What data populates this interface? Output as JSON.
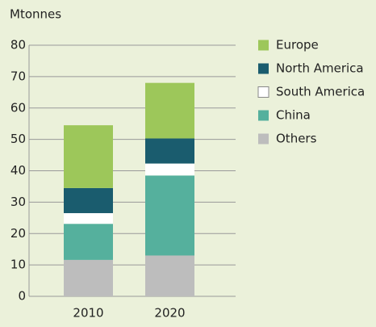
{
  "chart_data": {
    "type": "stacked_bar",
    "title": "Mtonnes",
    "categories": [
      "2010",
      "2020"
    ],
    "series": [
      {
        "name": "Europe",
        "color": "#9dc75a",
        "values": [
          20,
          17.7
        ]
      },
      {
        "name": "North America",
        "color": "#1a5c6e",
        "values": [
          8,
          8
        ]
      },
      {
        "name": "South America",
        "color": "#ffffff",
        "values": [
          3.4,
          3.8
        ]
      },
      {
        "name": "China",
        "color": "#55b09d",
        "values": [
          11.5,
          25.5
        ]
      },
      {
        "name": "Others",
        "color": "#bdbdbd",
        "values": [
          11.6,
          13
        ]
      }
    ],
    "ylim": [
      0,
      80
    ],
    "yticks": [
      0,
      10,
      20,
      30,
      40,
      50,
      60,
      70,
      80
    ],
    "grid": true
  }
}
